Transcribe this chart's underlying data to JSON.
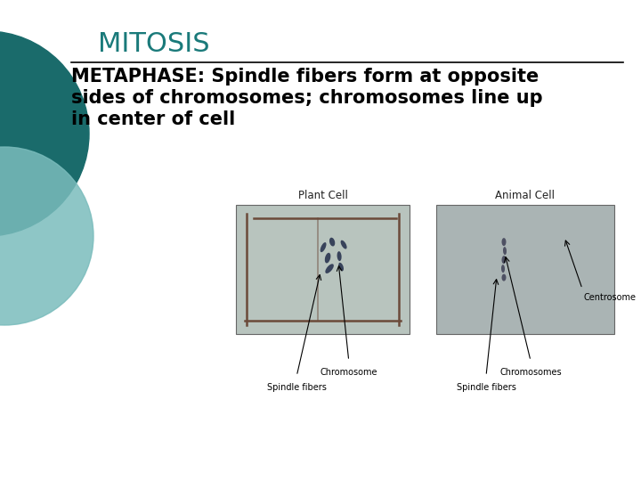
{
  "title": "MITOSIS",
  "title_color": "#1a7a7a",
  "title_fontsize": 22,
  "subtitle_line1": "METAPHASE: Spindle fibers form at opposite",
  "subtitle_line2": "sides of chromosomes; chromosomes line up",
  "subtitle_line3": "in center of cell",
  "subtitle_fontsize": 15,
  "subtitle_color": "#000000",
  "bg_color": "#ffffff",
  "circle1_color": "#1a6b6b",
  "circle2_color": "#7abcbc",
  "plant_cell_label": "Plant Cell",
  "animal_cell_label": "Animal Cell",
  "hr_color": "#000000",
  "label_fontsize": 7,
  "img_label_fontsize": 8.5
}
